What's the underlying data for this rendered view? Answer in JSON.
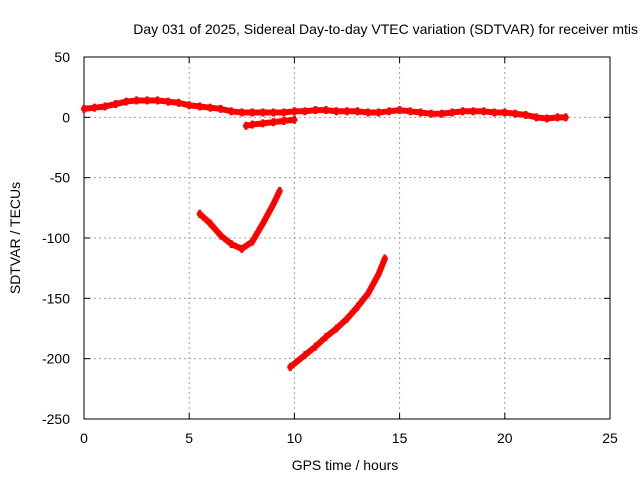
{
  "chart_data": {
    "type": "scatter",
    "title": "Day 031 of 2025, Sidereal Day-to-day VTEC variation (SDTVAR) for receiver mtis",
    "xlabel": "GPS time / hours",
    "ylabel": "SDTVAR / TECUs",
    "xlim": [
      0,
      25
    ],
    "ylim": [
      -250,
      50
    ],
    "xticks": [
      "0",
      "5",
      "10",
      "15",
      "20",
      "25"
    ],
    "yticks": [
      "50",
      "0",
      "-50",
      "-100",
      "-150",
      "-200",
      "-250"
    ],
    "grid": true,
    "series": [
      {
        "color": "#ff0000",
        "points": [
          [
            0.0,
            7
          ],
          [
            0.5,
            8
          ],
          [
            1.0,
            9
          ],
          [
            1.5,
            11
          ],
          [
            2.0,
            13
          ],
          [
            2.5,
            14
          ],
          [
            3.0,
            14
          ],
          [
            3.5,
            14
          ],
          [
            4.0,
            13
          ],
          [
            4.5,
            12
          ],
          [
            5.0,
            10
          ],
          [
            5.5,
            9
          ],
          [
            6.0,
            8
          ],
          [
            6.5,
            7
          ],
          [
            7.0,
            5
          ],
          [
            7.5,
            4
          ],
          [
            8.0,
            4
          ],
          [
            8.5,
            4
          ],
          [
            9.0,
            4
          ],
          [
            9.5,
            4
          ],
          [
            10.0,
            5
          ],
          [
            10.5,
            5
          ],
          [
            11.0,
            6
          ],
          [
            11.5,
            6
          ],
          [
            12.0,
            5
          ],
          [
            12.5,
            5
          ],
          [
            13.0,
            5
          ],
          [
            13.5,
            4
          ],
          [
            14.0,
            4
          ],
          [
            14.5,
            5
          ],
          [
            15.0,
            6
          ],
          [
            15.5,
            5
          ],
          [
            16.0,
            4
          ],
          [
            16.5,
            3
          ],
          [
            17.0,
            3
          ],
          [
            17.5,
            4
          ],
          [
            18.0,
            5
          ],
          [
            18.5,
            5
          ],
          [
            19.0,
            5
          ],
          [
            19.5,
            4
          ],
          [
            20.0,
            4
          ],
          [
            20.5,
            3
          ],
          [
            21.0,
            2
          ],
          [
            21.5,
            0
          ],
          [
            22.0,
            -1
          ],
          [
            22.5,
            0
          ],
          [
            22.9,
            0
          ]
        ]
      },
      {
        "color": "#ff0000",
        "points": [
          [
            7.7,
            -7
          ],
          [
            8.0,
            -6
          ],
          [
            8.5,
            -5
          ],
          [
            9.0,
            -4
          ],
          [
            9.5,
            -3
          ],
          [
            10.0,
            -2
          ]
        ]
      },
      {
        "color": "#ff0000",
        "points": [
          [
            5.5,
            -80
          ],
          [
            6.0,
            -88
          ],
          [
            6.5,
            -98
          ],
          [
            7.0,
            -105
          ],
          [
            7.5,
            -109
          ],
          [
            8.0,
            -103
          ],
          [
            8.5,
            -88
          ],
          [
            9.0,
            -72
          ],
          [
            9.3,
            -61
          ]
        ]
      },
      {
        "color": "#ff0000",
        "points": [
          [
            9.8,
            -207
          ],
          [
            10.5,
            -197
          ],
          [
            11.0,
            -190
          ],
          [
            11.5,
            -182
          ],
          [
            12.0,
            -175
          ],
          [
            12.5,
            -167
          ],
          [
            13.0,
            -157
          ],
          [
            13.5,
            -146
          ],
          [
            14.0,
            -130
          ],
          [
            14.3,
            -117
          ]
        ]
      }
    ]
  }
}
